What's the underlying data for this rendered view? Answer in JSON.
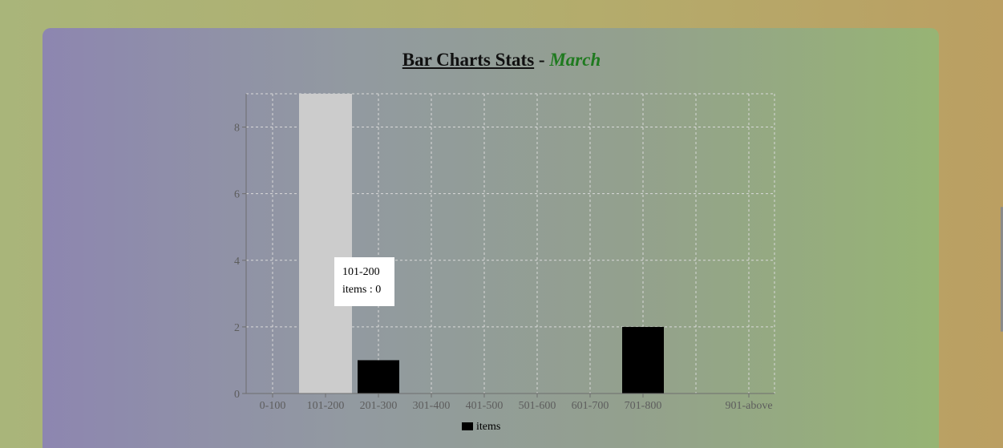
{
  "page": {
    "title_main": "Bar Charts Stats",
    "title_sep": "-",
    "title_month": "March"
  },
  "tooltip": {
    "category": "101-200",
    "items_label": "items : 0"
  },
  "legend": {
    "label": "items"
  },
  "colors": {
    "bar": "#000000",
    "bar_highlight": "#cccccc",
    "month": "#1f7a1f"
  },
  "chart_data": {
    "type": "bar",
    "title": "Bar Charts Stats - March",
    "categories": [
      "0-100",
      "101-200",
      "201-300",
      "301-400",
      "401-500",
      "501-600",
      "601-700",
      "701-800",
      "901-above"
    ],
    "series": [
      {
        "name": "items",
        "values": [
          0,
          0,
          1,
          0,
          0,
          0,
          0,
          2,
          0
        ]
      }
    ],
    "highlight_category": "101-200",
    "ylim": [
      0,
      9
    ],
    "yticks": [
      0,
      2,
      4,
      6,
      8
    ],
    "grid": true,
    "legend_position": "bottom"
  }
}
